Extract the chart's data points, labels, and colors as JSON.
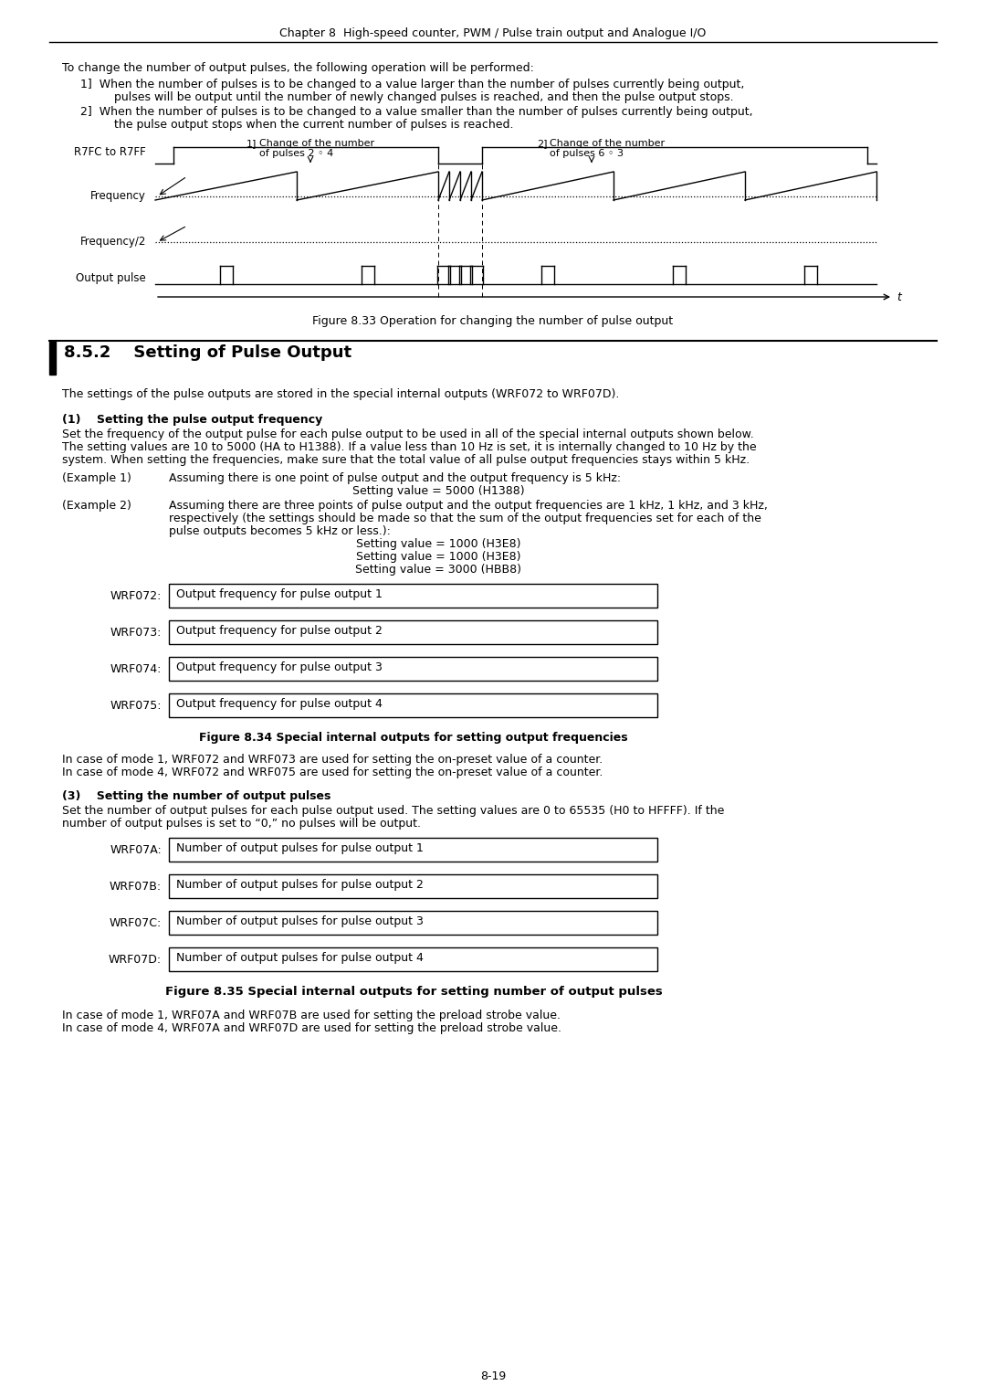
{
  "page_title": "Chapter 8  High-speed counter, PWM / Pulse train output and Analogue I/O",
  "page_number": "8-19",
  "background_color": "#ffffff",
  "text_color": "#000000",
  "intro_text": "To change the number of output pulses, the following operation will be performed:",
  "bullet1a": "1]  When the number of pulses is to be changed to a value larger than the number of pulses currently being output,",
  "bullet1b": "     pulses will be output until the number of newly changed pulses is reached, and then the pulse output stops.",
  "bullet2a": "2]  When the number of pulses is to be changed to a value smaller than the number of pulses currently being output,",
  "bullet2b": "     the pulse output stops when the current number of pulses is reached.",
  "fig33_caption": "Figure 8.33 Operation for changing the number of pulse output",
  "section_title": "8.5.2    Setting of Pulse Output",
  "section_intro": "The settings of the pulse outputs are stored in the special internal outputs (WRF072 to WRF07D).",
  "subsection1_title": "(1)    Setting the pulse output frequency",
  "sub1_line1": "Set the frequency of the output pulse for each pulse output to be used in all of the special internal outputs shown below.",
  "sub1_line2": "The setting values are 10 to 5000 (HA to H1388). If a value less than 10 Hz is set, it is internally changed to 10 Hz by the",
  "sub1_line3": "system. When setting the frequencies, make sure that the total value of all pulse output frequencies stays within 5 kHz.",
  "ex1_label": "(Example 1)",
  "ex1_text": "Assuming there is one point of pulse output and the output frequency is 5 kHz:",
  "ex1_value": "Setting value = 5000 (H1388)",
  "ex2_label": "(Example 2)",
  "ex2_line1": "Assuming there are three points of pulse output and the output frequencies are 1 kHz, 1 kHz, and 3 kHz,",
  "ex2_line2": "respectively (the settings should be made so that the sum of the output frequencies set for each of the",
  "ex2_line3": "pulse outputs becomes 5 kHz or less.):",
  "ex2_val1": "Setting value = 1000 (H3E8)",
  "ex2_val2": "Setting value = 1000 (H3E8)",
  "ex2_val3": "Setting value = 3000 (HBB8)",
  "freq_registers": [
    {
      "label": "WRF072:",
      "text": "Output frequency for pulse output 1"
    },
    {
      "label": "WRF073:",
      "text": "Output frequency for pulse output 2"
    },
    {
      "label": "WRF074:",
      "text": "Output frequency for pulse output 3"
    },
    {
      "label": "WRF075:",
      "text": "Output frequency for pulse output 4"
    }
  ],
  "fig34_caption": "Figure 8.34 Special internal outputs for setting output frequencies",
  "mode_note1a": "In case of mode 1, WRF072 and WRF073 are used for setting the on-preset value of a counter.",
  "mode_note1b": "In case of mode 4, WRF072 and WRF075 are used for setting the on-preset value of a counter.",
  "subsection3_title": "(3)    Setting the number of output pulses",
  "sub3_line1": "Set the number of output pulses for each pulse output used. The setting values are 0 to 65535 (H0 to HFFFF). If the",
  "sub3_line2": "number of output pulses is set to “0,” no pulses will be output.",
  "pulse_registers": [
    {
      "label": "WRF07A:",
      "text": "Number of output pulses for pulse output 1"
    },
    {
      "label": "WRF07B:",
      "text": "Number of output pulses for pulse output 2"
    },
    {
      "label": "WRF07C:",
      "text": "Number of output pulses for pulse output 3"
    },
    {
      "label": "WRF07D:",
      "text": "Number of output pulses for pulse output 4"
    }
  ],
  "fig35_caption": "Figure 8.35 Special internal outputs for setting number of output pulses",
  "final_note1": "In case of mode 1, WRF07A and WRF07B are used for setting the preload strobe value.",
  "final_note2": "In case of mode 4, WRF07A and WRF07D are used for setting the preload strobe value."
}
